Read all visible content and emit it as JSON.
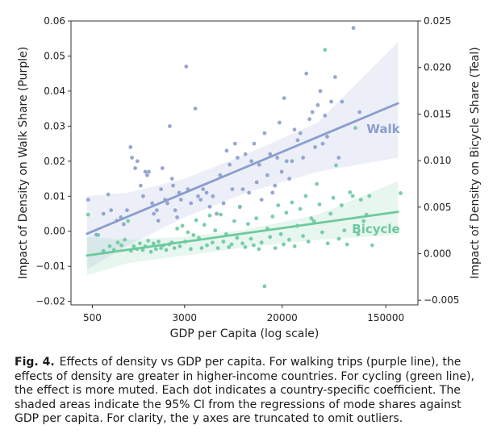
{
  "chart_data": {
    "type": "scatter",
    "x_scale": "log",
    "xlabel": "GDP per Capita (log scale)",
    "ylabel_left": "Impact of Density on Walk Share (Purple)",
    "ylabel_right": "Impact of Density on Bicycle Share (Teal)",
    "xlim": [
      330,
      280000
    ],
    "ylim_left": [
      -0.021,
      0.06
    ],
    "ylim_right": [
      -0.0055,
      0.025
    ],
    "x_ticks": [
      500,
      3000,
      20000,
      150000
    ],
    "x_tick_labels": [
      "500",
      "3000",
      "20000",
      "150000"
    ],
    "y_ticks_left": [
      -0.02,
      -0.01,
      0.0,
      0.01,
      0.02,
      0.03,
      0.04,
      0.05,
      0.06
    ],
    "y_tick_labels_left": [
      "−0.02",
      "−0.01",
      "0.00",
      "0.01",
      "0.02",
      "0.03",
      "0.04",
      "0.05",
      "0.06"
    ],
    "y_ticks_right": [
      -0.005,
      0.0,
      0.005,
      0.01,
      0.015,
      0.02,
      0.025
    ],
    "y_tick_labels_right": [
      "−0.005",
      "0.000",
      "0.005",
      "0.010",
      "0.015",
      "0.020",
      "0.025"
    ],
    "grid": false,
    "series": [
      {
        "name": "Walk",
        "axis": "left",
        "color": "#8b9dcc",
        "fit": {
          "x": [
            450,
            190000
          ],
          "y": [
            -0.0007,
            0.0365
          ]
        },
        "ci": {
          "x": [
            450,
            1000,
            3000,
            10000,
            40000,
            190000
          ],
          "lower": [
            -0.011,
            -0.004,
            0.004,
            0.011,
            0.017,
            0.021
          ],
          "upper": [
            0.01,
            0.011,
            0.015,
            0.022,
            0.031,
            0.054
          ]
        },
        "points": [
          [
            460,
            0.009
          ],
          [
            540,
            -0.001
          ],
          [
            620,
            0.005
          ],
          [
            680,
            0.0105
          ],
          [
            720,
            0.006
          ],
          [
            800,
            0.003
          ],
          [
            870,
            0.004
          ],
          [
            920,
            0.002
          ],
          [
            980,
            0.006
          ],
          [
            1050,
            0.024
          ],
          [
            1080,
            0.021
          ],
          [
            1150,
            0.018
          ],
          [
            1200,
            0.02
          ],
          [
            1280,
            0.013
          ],
          [
            1340,
            0.01
          ],
          [
            1400,
            0.017
          ],
          [
            1450,
            0.016
          ],
          [
            1500,
            0.017
          ],
          [
            1600,
            0.008
          ],
          [
            1650,
            0.005
          ],
          [
            1750,
            0.006
          ],
          [
            1800,
            0.003
          ],
          [
            1900,
            0.012
          ],
          [
            1950,
            0.018
          ],
          [
            2050,
            0.009
          ],
          [
            2150,
            0.008
          ],
          [
            2250,
            0.03
          ],
          [
            2350,
            0.015
          ],
          [
            2400,
            0.013
          ],
          [
            2500,
            0.006
          ],
          [
            2600,
            0.004
          ],
          [
            2700,
            0.011
          ],
          [
            2800,
            0.009
          ],
          [
            3100,
            0.047
          ],
          [
            3200,
            0.012
          ],
          [
            3400,
            0.008
          ],
          [
            3700,
            0.035
          ],
          [
            3900,
            0.01
          ],
          [
            4100,
            0.009
          ],
          [
            4300,
            0.012
          ],
          [
            4600,
            0.011
          ],
          [
            4900,
            0.007
          ],
          [
            5200,
            0.01
          ],
          [
            5600,
            0.005
          ],
          [
            6000,
            0.016
          ],
          [
            6400,
            0.008
          ],
          [
            6800,
            0.023
          ],
          [
            7200,
            0.019
          ],
          [
            7600,
            0.012
          ],
          [
            8000,
            0.025
          ],
          [
            8400,
            0.021
          ],
          [
            8800,
            0.007
          ],
          [
            9300,
            0.012
          ],
          [
            9800,
            0.022
          ],
          [
            10500,
            0.011
          ],
          [
            11000,
            0.02
          ],
          [
            11600,
            0.025
          ],
          [
            12200,
            0.014
          ],
          [
            12800,
            0.019
          ],
          [
            13400,
            0.009
          ],
          [
            14200,
            0.028
          ],
          [
            15000,
            0.016
          ],
          [
            15800,
            0.022
          ],
          [
            16600,
            0.011
          ],
          [
            17400,
            0.013
          ],
          [
            18200,
            0.021
          ],
          [
            19000,
            0.031
          ],
          [
            19800,
            0.017
          ],
          [
            20800,
            0.038
          ],
          [
            21800,
            0.02
          ],
          [
            23000,
            0.015
          ],
          [
            24200,
            0.02
          ],
          [
            25400,
            0.029
          ],
          [
            27000,
            0.026
          ],
          [
            28500,
            0.028
          ],
          [
            30000,
            0.021
          ],
          [
            32000,
            0.045
          ],
          [
            34000,
            0.032
          ],
          [
            36000,
            0.034
          ],
          [
            38000,
            0.024
          ],
          [
            40000,
            0.036
          ],
          [
            42000,
            0.04
          ],
          [
            44000,
            0.025
          ],
          [
            46000,
            0.033
          ],
          [
            48000,
            0.027
          ],
          [
            52000,
            0.037
          ],
          [
            56000,
            0.044
          ],
          [
            60000,
            0.021
          ],
          [
            64000,
            0.037
          ],
          [
            80000,
            0.058
          ],
          [
            90000,
            0.034
          ]
        ]
      },
      {
        "name": "Bicycle",
        "axis": "right",
        "color": "#6cc99d",
        "fit": {
          "x": [
            450,
            190000
          ],
          "y": [
            -0.0002,
            0.0045
          ]
        },
        "ci": {
          "x": [
            450,
            1000,
            3000,
            10000,
            40000,
            190000
          ],
          "lower": [
            -0.0023,
            -0.001,
            -0.0002,
            0.0007,
            0.0015,
            0.002
          ],
          "upper": [
            0.0018,
            0.0015,
            0.0018,
            0.0026,
            0.0042,
            0.0078
          ]
        },
        "points": [
          [
            460,
            0.0042
          ],
          [
            560,
            0.002
          ],
          [
            620,
            0.0003
          ],
          [
            700,
            0.0008
          ],
          [
            760,
            0.0004
          ],
          [
            820,
            0.0012
          ],
          [
            880,
            0.0009
          ],
          [
            940,
            0.0015
          ],
          [
            1000,
            0.0035
          ],
          [
            1060,
            0.0003
          ],
          [
            1120,
            0.0008
          ],
          [
            1190,
            0.0005
          ],
          [
            1260,
            0.0011
          ],
          [
            1330,
            0.0004
          ],
          [
            1400,
            0.0008
          ],
          [
            1480,
            0.0014
          ],
          [
            1560,
            0.0002
          ],
          [
            1640,
            0.0011
          ],
          [
            1720,
            0.0005
          ],
          [
            1810,
            0.0013
          ],
          [
            1900,
            0.0006
          ],
          [
            2000,
            0.0009
          ],
          [
            2100,
            0.0004
          ],
          [
            2230,
            0.001
          ],
          [
            2340,
            0.0012
          ],
          [
            2460,
            0.0006
          ],
          [
            2600,
            0.0027
          ],
          [
            2740,
            0.0008
          ],
          [
            2880,
            0.003
          ],
          [
            3040,
            0.0013
          ],
          [
            3200,
            0.0023
          ],
          [
            3380,
            0.0005
          ],
          [
            3560,
            0.002
          ],
          [
            3760,
            0.0036
          ],
          [
            3960,
            0.0017
          ],
          [
            4180,
            0.0006
          ],
          [
            4400,
            0.0031
          ],
          [
            4640,
            0.0009
          ],
          [
            4900,
            0.0041
          ],
          [
            5160,
            0.0012
          ],
          [
            5440,
            0.0025
          ],
          [
            5740,
            0.0006
          ],
          [
            6050,
            0.0042
          ],
          [
            6380,
            0.0013
          ],
          [
            6730,
            0.0021
          ],
          [
            7100,
            0.0007
          ],
          [
            7480,
            0.001
          ],
          [
            7890,
            0.0035
          ],
          [
            8330,
            0.0017
          ],
          [
            8780,
            0.005
          ],
          [
            9260,
            0.0011
          ],
          [
            9770,
            0.0007
          ],
          [
            10300,
            0.0032
          ],
          [
            10900,
            0.0016
          ],
          [
            11500,
            0.0009
          ],
          [
            12100,
            0.0038
          ],
          [
            12700,
            0.0005
          ],
          [
            13400,
            0.0012
          ],
          [
            14200,
            -0.0035
          ],
          [
            15000,
            0.0027
          ],
          [
            15800,
            0.0018
          ],
          [
            16600,
            0.004
          ],
          [
            17500,
            0.0006
          ],
          [
            18500,
            0.0052
          ],
          [
            19500,
            0.0021
          ],
          [
            20600,
            0.001
          ],
          [
            21700,
            0.0044
          ],
          [
            22900,
            0.0015
          ],
          [
            24200,
            0.0055
          ],
          [
            25500,
            0.0008
          ],
          [
            26900,
            0.003
          ],
          [
            28400,
            0.0048
          ],
          [
            30000,
            0.0019
          ],
          [
            31600,
            0.0062
          ],
          [
            33300,
            0.0013
          ],
          [
            35200,
            0.0038
          ],
          [
            37100,
            0.0035
          ],
          [
            39200,
            0.0075
          ],
          [
            41300,
            0.0053
          ],
          [
            43600,
            0.0023
          ],
          [
            46000,
            0.0219
          ],
          [
            48500,
            0.0011
          ],
          [
            51200,
            0.0043
          ],
          [
            54000,
            0.006
          ],
          [
            57000,
            0.0095
          ],
          [
            60200,
            0.0016
          ],
          [
            63500,
            0.0052
          ],
          [
            67000,
            0.0025
          ],
          [
            70700,
            0.001
          ],
          [
            74600,
            0.0066
          ],
          [
            78700,
            0.0062
          ],
          [
            83000,
            0.0135
          ],
          [
            87600,
            0.0021
          ],
          [
            92400,
            0.0058
          ],
          [
            97500,
            0.0035
          ],
          [
            103000,
            0.0042
          ],
          [
            109000,
            0.0062
          ],
          [
            115000,
            0.0009
          ],
          [
            200000,
            0.0065
          ]
        ]
      }
    ]
  },
  "caption": {
    "label": "Fig. 4.",
    "text": "Effects of density vs GDP per capita. For walking trips (purple line), the effects of density are greater in higher-income countries. For cycling (green line), the effect is more muted. Each dot indicates a country-specific coefficient. The shaded areas indicate the 95% CI from the regressions of mode shares against GDP per capita. For clarity, the y axes are truncated to omit outliers."
  }
}
